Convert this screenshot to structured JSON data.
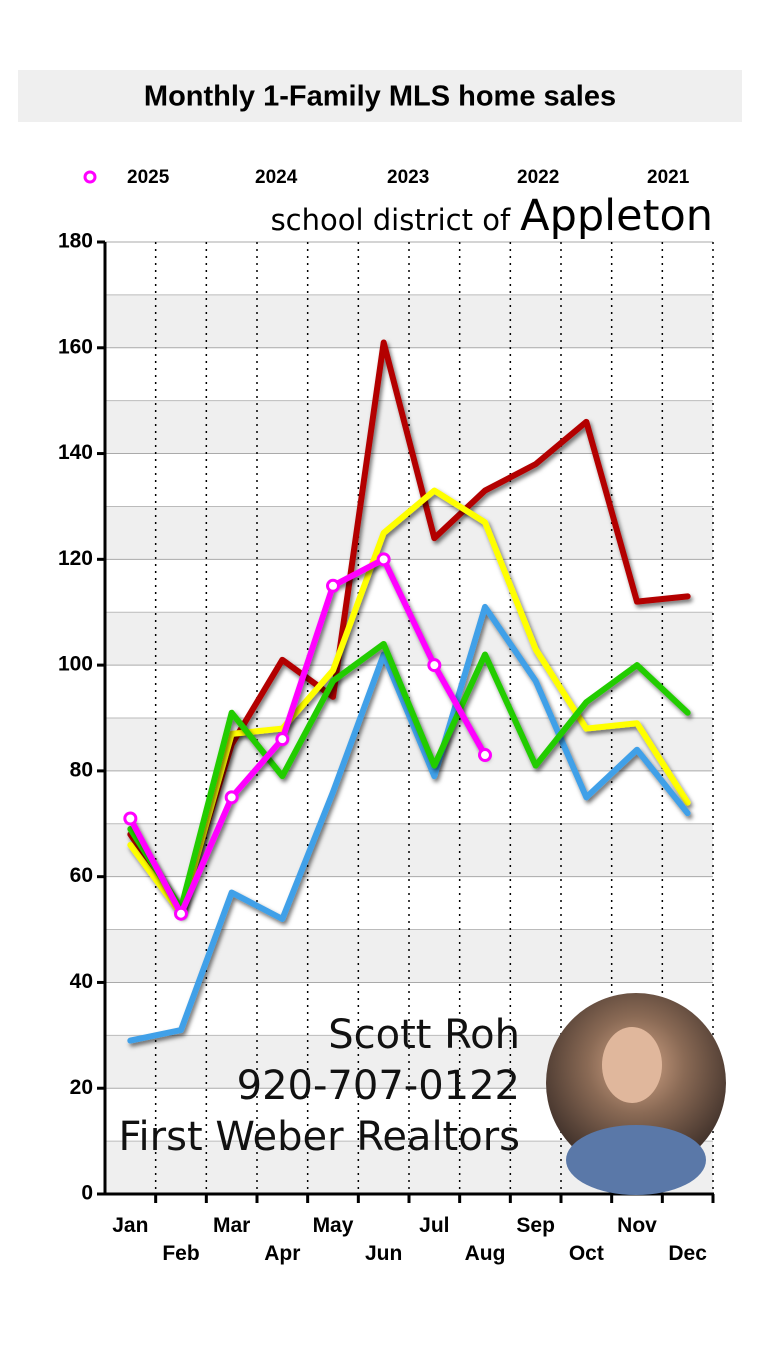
{
  "chart_data": {
    "type": "line",
    "title": "Monthly 1-Family MLS home sales",
    "subtitle": "school district of",
    "subtitle_place": "Appleton",
    "categories": [
      "Jan",
      "Feb",
      "Mar",
      "Apr",
      "May",
      "Jun",
      "Jul",
      "Aug",
      "Sep",
      "Oct",
      "Nov",
      "Dec"
    ],
    "series": [
      {
        "name": "2025",
        "color": "#ff00ff",
        "markers": true,
        "values": [
          71,
          53,
          75,
          86,
          115,
          120,
          100,
          83,
          null,
          null,
          null,
          null
        ]
      },
      {
        "name": "2024",
        "color": "#22cc00",
        "values": [
          69,
          54,
          91,
          79,
          97,
          104,
          81,
          102,
          81,
          93,
          100,
          91
        ]
      },
      {
        "name": "2023",
        "color": "#3fa0e8",
        "values": [
          29,
          31,
          57,
          52,
          76,
          102,
          79,
          111,
          97,
          75,
          84,
          72
        ]
      },
      {
        "name": "2022",
        "color": "#ffff00",
        "values": [
          66,
          53,
          87,
          88,
          99,
          125,
          133,
          127,
          103,
          88,
          89,
          74
        ]
      },
      {
        "name": "2021",
        "color": "#b30000",
        "values": [
          68,
          54,
          85,
          101,
          94,
          161,
          124,
          133,
          138,
          146,
          112,
          113
        ]
      }
    ],
    "ylim": [
      0,
      180
    ],
    "yticks": [
      0,
      20,
      40,
      60,
      80,
      100,
      120,
      140,
      160,
      180
    ],
    "grid": true,
    "contact": [
      "Scott Roh",
      "920-707-0122",
      "First Weber Realtors"
    ]
  }
}
